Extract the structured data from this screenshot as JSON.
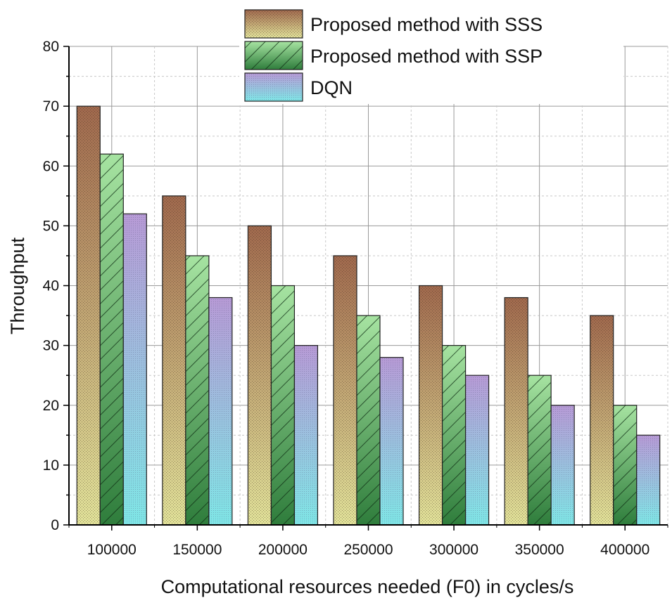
{
  "chart_data": {
    "type": "bar",
    "title": "",
    "xlabel": "Computational resources needed (F0) in cycles/s",
    "ylabel": "Throughput",
    "categories": [
      "100000",
      "150000",
      "200000",
      "250000",
      "300000",
      "350000",
      "400000"
    ],
    "ylim": [
      0,
      80
    ],
    "yticks": [
      0,
      10,
      20,
      30,
      40,
      50,
      60,
      70,
      80
    ],
    "grid": true,
    "legend_position": "top-right",
    "series": [
      {
        "name": "Proposed method with SSS",
        "values": [
          70,
          55,
          50,
          45,
          40,
          38,
          35
        ],
        "color_top": "#a0694d",
        "color_bottom": "#e2e39a"
      },
      {
        "name": "Proposed method with SSP",
        "values": [
          62,
          45,
          40,
          35,
          30,
          25,
          20
        ],
        "color_top": "#a6e3a1",
        "color_bottom": "#2f7d3c"
      },
      {
        "name": "DQN",
        "values": [
          52,
          38,
          30,
          28,
          25,
          20,
          15
        ],
        "color_top": "#b79ad6",
        "color_bottom": "#7fe6e6"
      }
    ]
  }
}
